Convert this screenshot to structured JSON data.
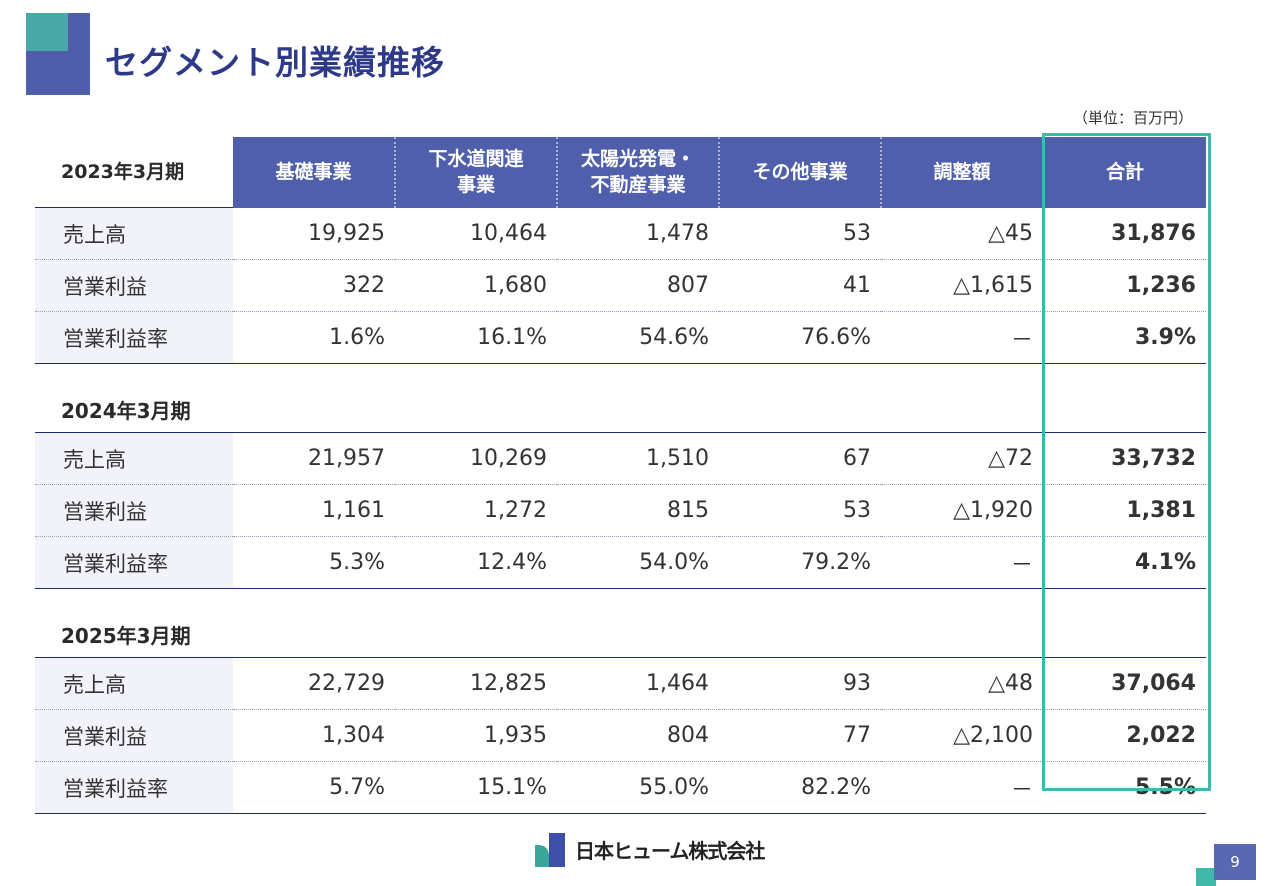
{
  "title": "セグメント別業績推移",
  "unit_note": "（単位：百万円）",
  "header": {
    "columns": [
      "基礎事業",
      "下水道関連\n事業",
      "太陽光発電・\n不動産事業",
      "その他事業",
      "調整額",
      "合計"
    ]
  },
  "periods": [
    {
      "label": "2023年3月期",
      "rows": [
        {
          "label": "売上高",
          "values": [
            "19,925",
            "10,464",
            "1,478",
            "53",
            "△45",
            "31,876"
          ]
        },
        {
          "label": "営業利益",
          "values": [
            "322",
            "1,680",
            "807",
            "41",
            "△1,615",
            "1,236"
          ]
        },
        {
          "label": "営業利益率",
          "values": [
            "1.6%",
            "16.1%",
            "54.6%",
            "76.6%",
            "－",
            "3.9%"
          ]
        }
      ]
    },
    {
      "label": "2024年3月期",
      "rows": [
        {
          "label": "売上高",
          "values": [
            "21,957",
            "10,269",
            "1,510",
            "67",
            "△72",
            "33,732"
          ]
        },
        {
          "label": "営業利益",
          "values": [
            "1,161",
            "1,272",
            "815",
            "53",
            "△1,920",
            "1,381"
          ]
        },
        {
          "label": "営業利益率",
          "values": [
            "5.3%",
            "12.4%",
            "54.0%",
            "79.2%",
            "－",
            "4.1%"
          ]
        }
      ]
    },
    {
      "label": "2025年3月期",
      "rows": [
        {
          "label": "売上高",
          "values": [
            "22,729",
            "12,825",
            "1,464",
            "93",
            "△48",
            "37,064"
          ]
        },
        {
          "label": "営業利益",
          "values": [
            "1,304",
            "1,935",
            "804",
            "77",
            "△2,100",
            "2,022"
          ]
        },
        {
          "label": "営業利益率",
          "values": [
            "5.7%",
            "15.1%",
            "55.0%",
            "82.2%",
            "－",
            "5.5%"
          ]
        }
      ]
    }
  ],
  "footer": {
    "company": "日本ヒューム株式会社",
    "page_number": "9"
  },
  "colors": {
    "title": "#2e3a87",
    "header_bg": "#505fac",
    "highlight_border": "#3fb9a8",
    "label_bg": "#f1f2fa"
  }
}
